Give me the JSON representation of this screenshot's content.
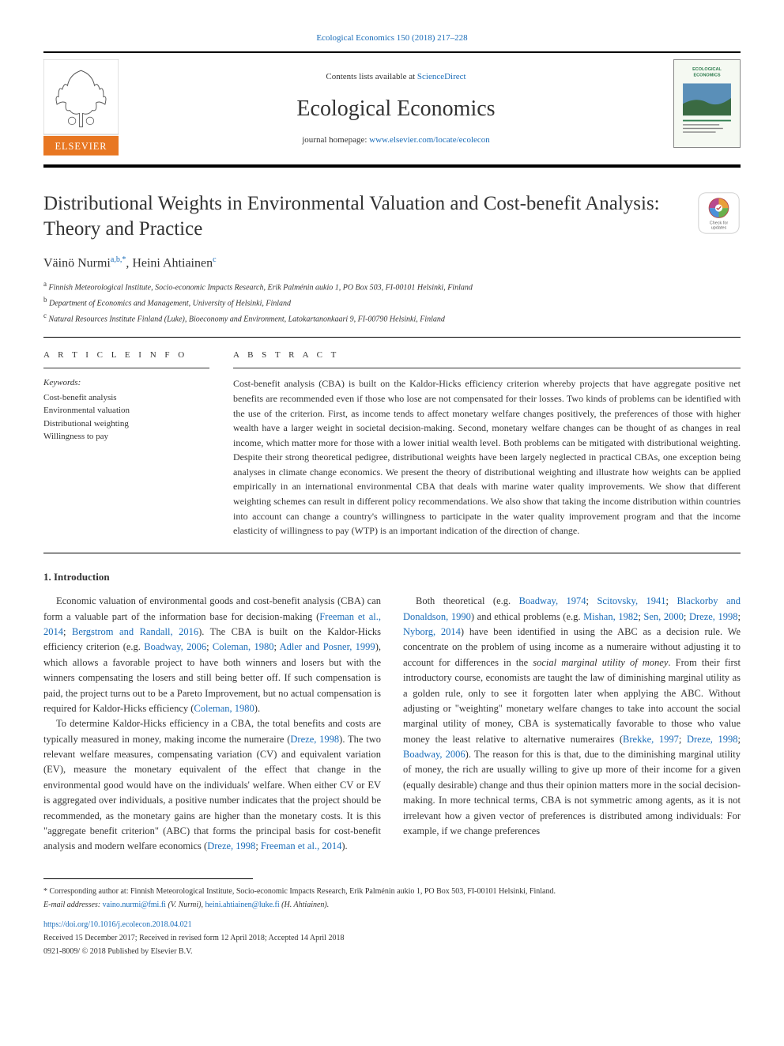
{
  "top_citation": "Ecological Economics 150 (2018) 217–228",
  "header": {
    "contents_prefix": "Contents lists available at ",
    "contents_link": "ScienceDirect",
    "journal_name": "Ecological Economics",
    "homepage_prefix": "journal homepage: ",
    "homepage_link": "www.elsevier.com/locate/ecolecon"
  },
  "article": {
    "title": "Distributional Weights in Environmental Valuation and Cost-benefit Analysis: Theory and Practice",
    "check_updates_label": "Check for updates"
  },
  "authors_html": "Väinö Nurmi<sup>a,b,*</sup>, Heini Ahtiainen<sup>c</sup>",
  "affiliations": [
    {
      "sup": "a",
      "text": "Finnish Meteorological Institute, Socio-economic Impacts Research, Erik Palménin aukio 1, PO Box 503, FI-00101 Helsinki, Finland"
    },
    {
      "sup": "b",
      "text": "Department of Economics and Management, University of Helsinki, Finland"
    },
    {
      "sup": "c",
      "text": "Natural Resources Institute Finland (Luke), Bioeconomy and Environment, Latokartanonkaari 9, FI-00790 Helsinki, Finland"
    }
  ],
  "article_info": {
    "heading": "A R T I C L E  I N F O",
    "keywords_label": "Keywords:",
    "keywords": [
      "Cost-benefit analysis",
      "Environmental valuation",
      "Distributional weighting",
      "Willingness to pay"
    ]
  },
  "abstract": {
    "heading": "A B S T R A C T",
    "text": "Cost-benefit analysis (CBA) is built on the Kaldor-Hicks efficiency criterion whereby projects that have aggregate positive net benefits are recommended even if those who lose are not compensated for their losses. Two kinds of problems can be identified with the use of the criterion. First, as income tends to affect monetary welfare changes positively, the preferences of those with higher wealth have a larger weight in societal decision-making. Second, monetary welfare changes can be thought of as changes in real income, which matter more for those with a lower initial wealth level. Both problems can be mitigated with distributional weighting. Despite their strong theoretical pedigree, distributional weights have been largely neglected in practical CBAs, one exception being analyses in climate change economics. We present the theory of distributional weighting and illustrate how weights can be applied empirically in an international environmental CBA that deals with marine water quality improvements. We show that different weighting schemes can result in different policy recommendations. We also show that taking the income distribution within countries into account can change a country's willingness to participate in the water quality improvement program and that the income elasticity of willingness to pay (WTP) is an important indication of the direction of change."
  },
  "body": {
    "section_heading": "1. Introduction",
    "paragraphs_html": [
      "Economic valuation of environmental goods and cost-benefit analysis (CBA) can form a valuable part of the information base for decision-making (<span class=\"citation\">Freeman et al., 2014</span>; <span class=\"citation\">Bergstrom and Randall, 2016</span>). The CBA is built on the Kaldor-Hicks efficiency criterion (e.g. <span class=\"citation\">Boadway, 2006</span>; <span class=\"citation\">Coleman, 1980</span>; <span class=\"citation\">Adler and Posner, 1999</span>), which allows a favorable project to have both winners and losers but with the winners compensating the losers and still being better off. If such compensation is paid, the project turns out to be a Pareto Improvement, but no actual compensation is required for Kaldor-Hicks efficiency (<span class=\"citation\">Coleman, 1980</span>).",
      "To determine Kaldor-Hicks efficiency in a CBA, the total benefits and costs are typically measured in money, making income the numeraire (<span class=\"citation\">Dreze, 1998</span>). The two relevant welfare measures, compensating variation (CV) and equivalent variation (EV), measure the monetary equivalent of the effect that change in the environmental good would have on the individuals' welfare. When either CV or EV is aggregated over individuals, a positive number indicates that the project should be recommended, as the monetary gains are higher than the monetary costs. It is this \"aggregate benefit criterion\" (ABC) that forms the principal basis for cost-benefit analysis and modern welfare economics (<span class=\"citation\">Dreze, 1998</span>; <span class=\"citation\">Freeman et al., 2014</span>).",
      "Both theoretical (e.g. <span class=\"citation\">Boadway, 1974</span>; <span class=\"citation\">Scitovsky, 1941</span>; <span class=\"citation\">Blackorby and Donaldson, 1990</span>) and ethical problems (e.g. <span class=\"citation\">Mishan, 1982</span>; <span class=\"citation\">Sen, 2000</span>; <span class=\"citation\">Dreze, 1998</span>; <span class=\"citation\">Nyborg, 2014</span>) have been identified in using the ABC as a decision rule. We concentrate on the problem of using income as a numeraire without adjusting it to account for differences in the <em>social marginal utility of money</em>. From their first introductory course, economists are taught the law of diminishing marginal utility as a golden rule, only to see it forgotten later when applying the ABC. Without adjusting or \"weighting\" monetary welfare changes to take into account the social marginal utility of money, CBA is systematically favorable to those who value money the least relative to alternative numeraires (<span class=\"citation\">Brekke, 1997</span>; <span class=\"citation\">Dreze, 1998</span>; <span class=\"citation\">Boadway, 2006</span>). The reason for this is that, due to the diminishing marginal utility of money, the rich are usually willing to give up more of their income for a given (equally desirable) change and thus their opinion matters more in the social decision-making. In more technical terms, CBA is not symmetric among agents, as it is not irrelevant how a given vector of preferences is distributed among individuals: For example, if we change preferences"
    ]
  },
  "footer": {
    "corresponding": "* Corresponding author at: Finnish Meteorological Institute, Socio-economic Impacts Research, Erik Palménin aukio 1, PO Box 503, FI-00101 Helsinki, Finland.",
    "email_label": "E-mail addresses: ",
    "emails": [
      {
        "addr": "vaino.nurmi@fmi.fi",
        "who": "(V. Nurmi)"
      },
      {
        "addr": "heini.ahtiainen@luke.fi",
        "who": "(H. Ahtiainen)"
      }
    ],
    "doi": "https://doi.org/10.1016/j.ecolecon.2018.04.021",
    "received": "Received 15 December 2017; Received in revised form 12 April 2018; Accepted 14 April 2018",
    "copyright": "0921-8009/ © 2018 Published by Elsevier B.V."
  },
  "colors": {
    "link": "#1a6cb8",
    "text": "#333333",
    "rule": "#000000",
    "elsevier_orange": "#e87722",
    "journal_cover_bg": "#f5f9f2",
    "journal_cover_accent": "#2e7d4f"
  }
}
